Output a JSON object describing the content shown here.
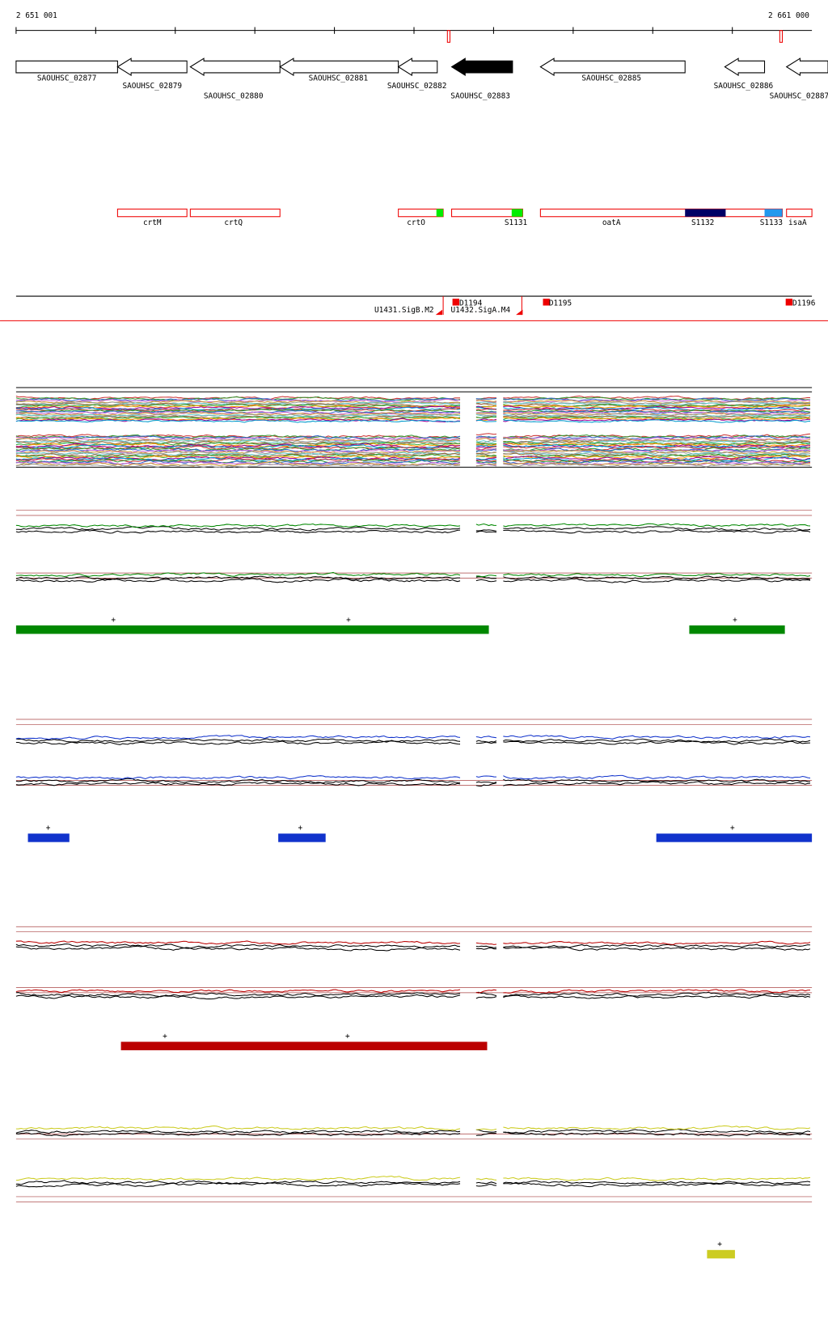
{
  "ruler": {
    "start": "2 651 001",
    "end": "2 661 000"
  },
  "genes": [
    "SAOUHSC_02877",
    "SAOUHSC_02879",
    "SAOUHSC_02880",
    "SAOUHSC_02881",
    "SAOUHSC_02882",
    "SAOUHSC_02883",
    "SAOUHSC_02885",
    "SAOUHSC_02886",
    "SAOUHSC_02887"
  ],
  "features": [
    "crtM",
    "crtQ",
    "crtO",
    "S1131",
    "oatA",
    "S1132",
    "S1133",
    "isaA"
  ],
  "promoters": [
    "U1431.SigB.M2",
    "U1432.SigA.M4"
  ],
  "terminators": [
    "D1194",
    "D1195",
    "D1196"
  ],
  "tracks": [
    {
      "name": "green",
      "marks": [
        "+",
        "+",
        "+"
      ]
    },
    {
      "name": "blue",
      "marks": [
        "+",
        "+",
        "+"
      ]
    },
    {
      "name": "red",
      "marks": [
        "+",
        "+"
      ]
    },
    {
      "name": "yellow",
      "marks": [
        "+"
      ]
    }
  ]
}
